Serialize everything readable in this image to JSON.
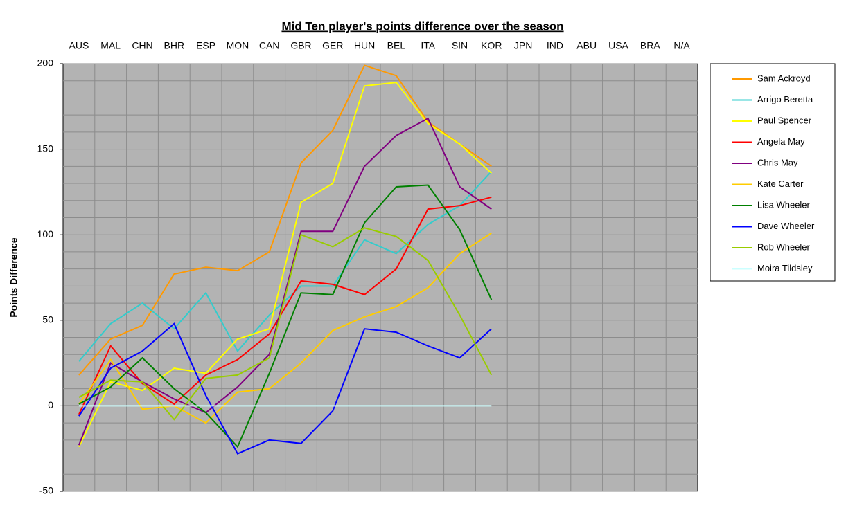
{
  "chart_data": {
    "type": "line",
    "title": "Mid Ten player's points difference over the season",
    "y_label": "Points Difference",
    "categories": [
      "AUS",
      "MAL",
      "CHN",
      "BHR",
      "ESP",
      "MON",
      "CAN",
      "GBR",
      "GER",
      "HUN",
      "BEL",
      "ITA",
      "SIN",
      "KOR",
      "JPN",
      "IND",
      "ABU",
      "USA",
      "BRA",
      "N/A"
    ],
    "ylim": [
      -50,
      200
    ],
    "yticks": [
      -50,
      0,
      50,
      100,
      150,
      200
    ],
    "minor_yticks": [
      -40,
      -30,
      -20,
      -10,
      10,
      20,
      30,
      40,
      60,
      70,
      80,
      90,
      110,
      120,
      130,
      140,
      160,
      170,
      180,
      190
    ],
    "grid": true,
    "legend": "right",
    "series": [
      {
        "name": "Sam Ackroyd",
        "color": "#ff9900",
        "values": [
          18,
          39,
          47,
          77,
          81,
          79,
          90,
          142,
          161,
          199,
          193,
          166,
          153,
          140,
          null,
          null,
          null,
          null,
          null,
          null
        ]
      },
      {
        "name": "Arrigo Beretta",
        "color": "#33cccc",
        "values": [
          26,
          48,
          60,
          45,
          66,
          32,
          53,
          70,
          70,
          97,
          89,
          106,
          117,
          137,
          null,
          null,
          null,
          null,
          null,
          null
        ]
      },
      {
        "name": "Paul Spencer",
        "color": "#ffff00",
        "values": [
          -24,
          14,
          9,
          22,
          19,
          39,
          45,
          119,
          130,
          187,
          189,
          165,
          153,
          136,
          null,
          null,
          null,
          null,
          null,
          null
        ]
      },
      {
        "name": "Angela May",
        "color": "#ff0000",
        "values": [
          -5,
          35,
          13,
          1,
          18,
          27,
          42,
          73,
          71,
          65,
          80,
          115,
          117,
          122,
          null,
          null,
          null,
          null,
          null,
          null
        ]
      },
      {
        "name": "Chris May",
        "color": "#800080",
        "values": [
          -23,
          25,
          14,
          4,
          -4,
          11,
          30,
          102,
          102,
          140,
          158,
          168,
          128,
          115,
          null,
          null,
          null,
          null,
          null,
          null
        ]
      },
      {
        "name": "Kate Carter",
        "color": "#ffcc00",
        "values": [
          1,
          27,
          -2,
          0,
          -10,
          8,
          10,
          25,
          44,
          52,
          58,
          69,
          89,
          101,
          null,
          null,
          null,
          null,
          null,
          null
        ]
      },
      {
        "name": "Lisa Wheeler",
        "color": "#008000",
        "values": [
          1,
          11,
          28,
          10,
          -4,
          -24,
          19,
          66,
          65,
          107,
          128,
          129,
          103,
          62,
          null,
          null,
          null,
          null,
          null,
          null
        ]
      },
      {
        "name": "Dave Wheeler",
        "color": "#0000ff",
        "values": [
          -6,
          22,
          32,
          48,
          6,
          -28,
          -20,
          -22,
          -3,
          45,
          43,
          35,
          28,
          45,
          null,
          null,
          null,
          null,
          null,
          null
        ]
      },
      {
        "name": "Rob Wheeler",
        "color": "#99cc00",
        "values": [
          5,
          15,
          14,
          -8,
          16,
          18,
          28,
          100,
          93,
          104,
          99,
          85,
          53,
          18,
          null,
          null,
          null,
          null,
          null,
          null
        ]
      },
      {
        "name": "Moira Tildsley",
        "color": "#ccffff",
        "values": [
          0,
          0,
          0,
          0,
          0,
          0,
          0,
          0,
          0,
          0,
          0,
          0,
          0,
          0,
          null,
          null,
          null,
          null,
          null,
          null
        ]
      }
    ]
  }
}
